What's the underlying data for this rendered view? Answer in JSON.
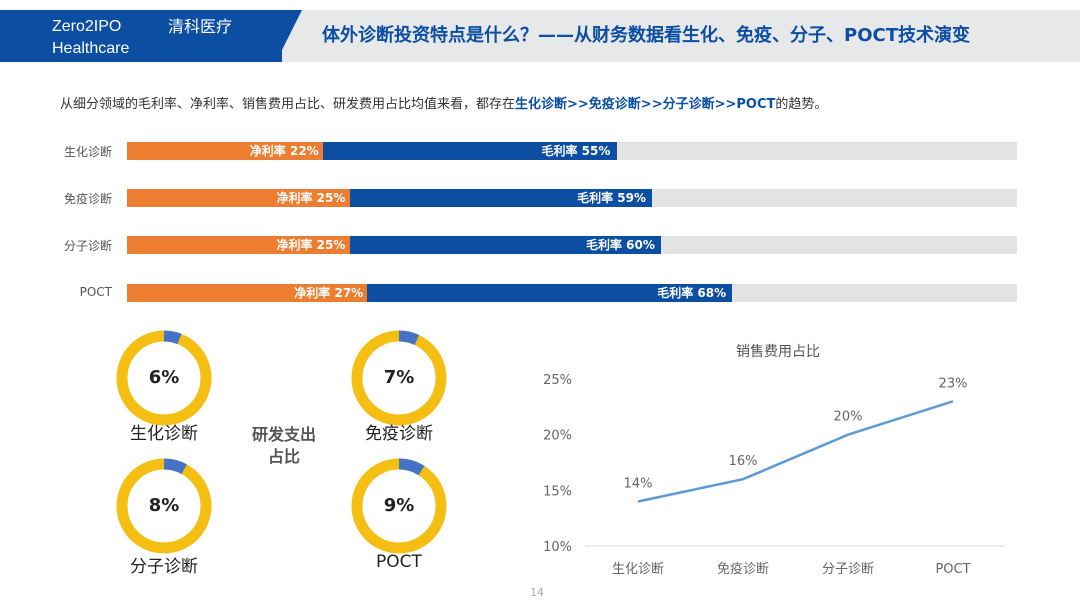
{
  "header": {
    "brand_en_line1": "Zero2IPO",
    "brand_en_line2": "Healthcare",
    "brand_cn": "清科医疗",
    "title": "体外诊断投资特点是什么？——从财务数据看生化、免疫、分子、POCT技术演变"
  },
  "subtitle": {
    "prefix": "从细分领域的毛利率、净利率、销售费用占比、研发费用占比均值来看，都存在",
    "highlight": "生化诊断>>免疫诊断>>分子诊断>>POCT",
    "suffix": "的趋势。"
  },
  "colors": {
    "brand_blue": "#0b4ea2",
    "net_orange": "#ed7d31",
    "track_gray": "#e3e3e3",
    "donut_yellow": "#f5be12",
    "donut_blue": "#4472c4",
    "line_blue": "#5b9bd5"
  },
  "chart_data": [
    {
      "type": "bar",
      "title": "",
      "categories": [
        "生化诊断",
        "免疫诊断",
        "分子诊断",
        "POCT"
      ],
      "series": [
        {
          "name": "净利率",
          "values": [
            22,
            25,
            25,
            27
          ],
          "labels": [
            "净利率 22%",
            "净利率 25%",
            "净利率 25%",
            "净利率 27%"
          ]
        },
        {
          "name": "毛利率",
          "values": [
            55,
            59,
            60,
            68
          ],
          "labels": [
            "毛利率 55%",
            "毛利率 59%",
            "毛利率 60%",
            "毛利率 68%"
          ]
        }
      ],
      "xlim": [
        0,
        100
      ],
      "orientation": "horizontal"
    },
    {
      "type": "pie",
      "title": "研发支出占比",
      "title_line1": "研发支出",
      "title_line2": "占比",
      "categories": [
        "生化诊断",
        "免疫诊断",
        "分子诊断",
        "POCT"
      ],
      "values": [
        6,
        7,
        8,
        9
      ],
      "labels": [
        "6%",
        "7%",
        "8%",
        "9%"
      ],
      "style": "donut"
    },
    {
      "type": "line",
      "title": "销售费用占比",
      "x": [
        "生化诊断",
        "免疫诊断",
        "分子诊断",
        "POCT"
      ],
      "values": [
        14,
        16,
        20,
        23
      ],
      "labels": [
        "14%",
        "16%",
        "20%",
        "23%"
      ],
      "yticks": [
        "10%",
        "15%",
        "20%",
        "25%"
      ],
      "ylim": [
        10,
        25
      ],
      "xlabel": "",
      "ylabel": ""
    }
  ],
  "footer": {
    "page_number": "14"
  }
}
